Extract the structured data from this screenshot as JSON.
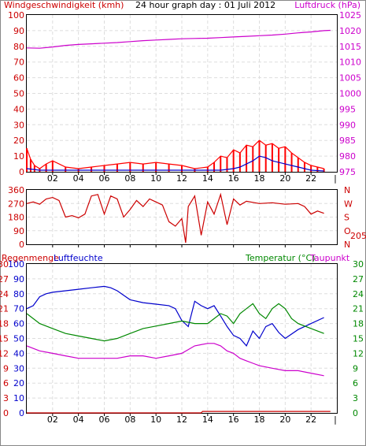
{
  "chart_data": [
    {
      "type": "line",
      "title": "24 hour graph day : 01 Juli 2012",
      "ylabel": "Windgeschwindigkeit (kmh)",
      "y2label": "Luftdruck (hPa)",
      "ylim": [
        0,
        100
      ],
      "y2lim": [
        975,
        1025
      ],
      "yticks": [
        "0",
        "10",
        "20",
        "30",
        "40",
        "50",
        "60",
        "70",
        "80",
        "90",
        "100"
      ],
      "y2ticks": [
        "975",
        "980",
        "985",
        "990",
        "995",
        "1000",
        "1005",
        "1010",
        "1015",
        "1020",
        "1025"
      ],
      "xticks": [
        "02",
        "04",
        "06",
        "08",
        "10",
        "12",
        "14",
        "16",
        "18",
        "20",
        "22"
      ],
      "grid": true,
      "colors": {
        "wind": "#ff0000",
        "avg_wind": "#0000cc",
        "pressure": "#cc00cc",
        "left_axis": "#cc0000",
        "right_axis": "#cc00cc",
        "grid": "#d8d8d8"
      },
      "series": [
        {
          "key": "pressure",
          "x": [
            0,
            1,
            2,
            3,
            4,
            5,
            6,
            7,
            8,
            9,
            10,
            11,
            12,
            13,
            14,
            15,
            16,
            17,
            18,
            19,
            20,
            21,
            22,
            23,
            23.5
          ],
          "values": [
            1014.5,
            1014.4,
            1014.8,
            1015.3,
            1015.6,
            1015.8,
            1016.0,
            1016.2,
            1016.5,
            1016.8,
            1017.0,
            1017.2,
            1017.4,
            1017.5,
            1017.6,
            1017.8,
            1018.0,
            1018.2,
            1018.4,
            1018.6,
            1018.9,
            1019.3,
            1019.6,
            1020.0,
            1020.1
          ]
        },
        {
          "key": "wind",
          "x": [
            0,
            0.3,
            0.6,
            1,
            1.5,
            2,
            3,
            4,
            5,
            6,
            7,
            8,
            9,
            10,
            11,
            12,
            13,
            14,
            14.5,
            15,
            15.5,
            16,
            16.5,
            17,
            17.5,
            18,
            18.5,
            19,
            19.5,
            20,
            20.5,
            21,
            21.5,
            22,
            22.5,
            23
          ],
          "values": [
            15,
            8,
            4,
            2,
            5,
            7,
            3,
            2,
            3,
            4,
            5,
            6,
            5,
            6,
            5,
            4,
            2,
            3,
            6,
            10,
            9,
            14,
            12,
            17,
            16,
            20,
            17,
            18,
            15,
            16,
            12,
            9,
            6,
            4,
            3,
            2
          ]
        },
        {
          "key": "avg_wind",
          "x": [
            0,
            1,
            2,
            3,
            4,
            5,
            6,
            7,
            8,
            9,
            10,
            11,
            12,
            13,
            14,
            15,
            15.5,
            16,
            16.5,
            17,
            17.5,
            18,
            18.5,
            19,
            19.5,
            20,
            20.5,
            21,
            21.5,
            22,
            23
          ],
          "values": [
            2,
            1,
            1,
            1,
            1,
            1,
            1,
            1,
            1,
            1,
            1,
            1,
            1,
            1,
            1,
            1,
            1.5,
            2,
            3,
            5,
            7,
            10,
            9,
            7,
            6,
            5,
            4,
            3,
            2,
            1,
            0.5
          ]
        }
      ]
    },
    {
      "type": "line",
      "ylabel": "",
      "ylim": [
        0,
        360
      ],
      "yticks": [
        "0",
        "90",
        "180",
        "270",
        "360"
      ],
      "compass": [
        "N",
        "W",
        "S",
        "O",
        "N"
      ],
      "current_direction": "205",
      "xticks": [
        "02",
        "04",
        "06",
        "08",
        "10",
        "12",
        "14",
        "16",
        "18",
        "20",
        "22"
      ],
      "grid": true,
      "colors": {
        "direction": "#cc0000",
        "axis_text": "#cc0000"
      },
      "series": [
        {
          "key": "direction",
          "x": [
            0,
            0.5,
            1,
            1.5,
            2,
            2.5,
            3,
            3.5,
            4,
            4.5,
            5,
            5.5,
            6,
            6.5,
            7,
            7.5,
            8,
            8.5,
            9,
            9.5,
            10,
            10.5,
            11,
            11.5,
            12,
            12.3,
            12.5,
            13,
            13.5,
            14,
            14.5,
            15,
            15.5,
            16,
            16.5,
            17,
            18,
            19,
            20,
            21,
            21.5,
            22,
            22.5,
            23
          ],
          "values": [
            270,
            280,
            265,
            300,
            310,
            290,
            180,
            190,
            175,
            200,
            320,
            330,
            200,
            320,
            300,
            180,
            230,
            290,
            250,
            300,
            280,
            260,
            150,
            120,
            170,
            10,
            250,
            320,
            60,
            280,
            200,
            330,
            130,
            300,
            260,
            285,
            270,
            275,
            265,
            270,
            250,
            200,
            220,
            205
          ]
        }
      ]
    },
    {
      "type": "line",
      "ylabel": "Luftfeuchte",
      "ylabel_left": "Regenmenge",
      "y2label": "Temperatur (°C)",
      "y3label": "Taupunkt",
      "ylim_humidity": [
        0,
        100
      ],
      "ylim_temp": [
        0,
        30
      ],
      "rain_ticks": [
        "0",
        "3",
        "6",
        "9",
        "12",
        "15",
        "18",
        "21",
        "24",
        "27",
        "30"
      ],
      "humidity_ticks": [
        "0",
        "10",
        "20",
        "30",
        "40",
        "50",
        "60",
        "70",
        "80",
        "90",
        "100"
      ],
      "temp_ticks": [
        "0",
        "3",
        "6",
        "9",
        "12",
        "15",
        "18",
        "21",
        "24",
        "27",
        "30"
      ],
      "xticks": [
        "02",
        "04",
        "06",
        "08",
        "10",
        "12",
        "14",
        "16",
        "18",
        "20",
        "22"
      ],
      "grid": true,
      "colors": {
        "humidity": "#0000cc",
        "temperature": "#008800",
        "dewpoint": "#cc00cc",
        "rain": "#cc0000",
        "left_axis": "#cc0000",
        "humidity_axis": "#0000cc",
        "temp_axis": "#008800"
      },
      "series": [
        {
          "key": "humidity",
          "x": [
            0,
            0.5,
            1,
            1.5,
            2,
            3,
            4,
            5,
            6,
            6.5,
            7,
            8,
            9,
            10,
            11,
            11.5,
            12,
            12.5,
            13,
            13.5,
            14,
            14.5,
            15,
            15.5,
            16,
            16.5,
            17,
            17.5,
            18,
            18.5,
            19,
            19.5,
            20,
            21,
            22,
            23
          ],
          "values": [
            70,
            72,
            78,
            80,
            81,
            82,
            83,
            84,
            85,
            84,
            82,
            76,
            74,
            73,
            72,
            70,
            62,
            58,
            75,
            72,
            70,
            72,
            65,
            58,
            52,
            50,
            45,
            55,
            50,
            58,
            60,
            54,
            50,
            56,
            60,
            64
          ]
        },
        {
          "key": "temperature",
          "x": [
            0,
            1,
            2,
            3,
            4,
            5,
            6,
            7,
            8,
            9,
            10,
            11,
            12,
            13,
            14,
            15,
            15.5,
            16,
            16.5,
            17,
            17.5,
            18,
            18.5,
            19,
            19.5,
            20,
            20.5,
            21,
            22,
            23
          ],
          "values": [
            20,
            18,
            17,
            16,
            15.5,
            15,
            14.5,
            15,
            16,
            17,
            17.5,
            18,
            18.5,
            18,
            18,
            20,
            19.5,
            18,
            20,
            21,
            22,
            20,
            19,
            21,
            22,
            21,
            19,
            18,
            17,
            16
          ]
        },
        {
          "key": "dewpoint",
          "x": [
            0,
            1,
            2,
            3,
            4,
            5,
            6,
            7,
            8,
            9,
            10,
            11,
            12,
            13,
            14,
            14.5,
            15,
            15.5,
            16,
            16.5,
            17,
            17.5,
            18,
            19,
            20,
            21,
            22,
            23
          ],
          "values": [
            13.5,
            12.5,
            12,
            11.5,
            11,
            11,
            11,
            11,
            11.5,
            11.5,
            11,
            11.5,
            12,
            13.5,
            14,
            14,
            13.5,
            12.5,
            12,
            11,
            10.5,
            10,
            9.5,
            9,
            8.5,
            8.5,
            8,
            7.5
          ]
        },
        {
          "key": "rain",
          "x": [
            0,
            13.5,
            13.6,
            23.5
          ],
          "values": [
            0,
            0,
            0.3,
            0.3
          ]
        }
      ]
    }
  ]
}
